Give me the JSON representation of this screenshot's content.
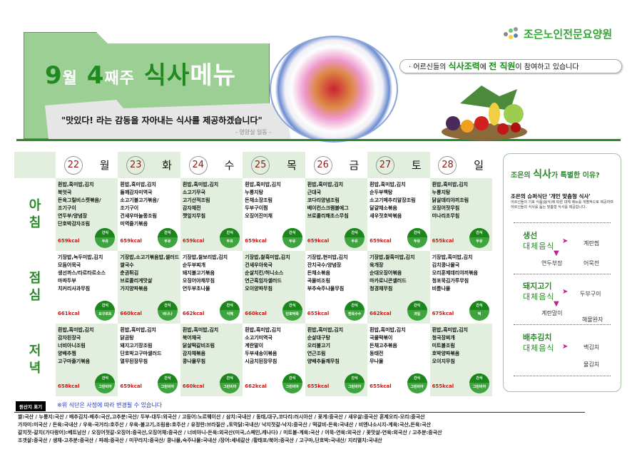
{
  "header": {
    "title_month": "9",
    "title_month_unit": "월",
    "title_week": "4",
    "title_week_unit": "째주",
    "title_meal": "식사",
    "title_menu": "메뉴",
    "quote": "\"맛있다! 라는 감동을 자아내는 식사를 제공하겠습니다\"",
    "quote_sign": "- 영양실 일동 -",
    "logo_text": "조은노인전문요양원",
    "slogan_pre": "· 어르신들의 ",
    "slogan_b1": "식사조력",
    "slogan_mid": "에 ",
    "slogan_b2": "전 직원",
    "slogan_post": "이 참여하고 있습니다"
  },
  "days": [
    {
      "num": "22",
      "name": "월"
    },
    {
      "num": "23",
      "name": "화"
    },
    {
      "num": "24",
      "name": "수"
    },
    {
      "num": "25",
      "name": "목"
    },
    {
      "num": "26",
      "name": "금"
    },
    {
      "num": "27",
      "name": "토"
    },
    {
      "num": "28",
      "name": "일"
    }
  ],
  "meals": [
    {
      "label": [
        "아",
        "침"
      ],
      "cells": [
        {
          "items": [
            "흰밥,흑미밥,김치",
            "북엇국",
            "돈육그릴비스켓볶음/",
            "조기구이",
            "연두부/양념장",
            "단호박감자조림"
          ],
          "kcal": "659kcal",
          "snack": [
            "간식",
            "두유"
          ]
        },
        {
          "items": [
            "흰밥,흑미밥,김치",
            "들깨감자미역국",
            "소고기불고기볶음/",
            "조기구이",
            "건새우마늘쫑조림",
            "미역줄기볶음"
          ],
          "kcal": "659kcal",
          "snack": [
            "간식",
            "두유"
          ]
        },
        {
          "items": [
            "흰밥,흑미밥,김치",
            "소고기무국",
            "고기산적조림",
            "감자채전",
            "깻잎지무침"
          ],
          "kcal": "659kcal",
          "snack": [
            "간식",
            "두유"
          ]
        },
        {
          "items": [
            "흰밥,흑미밥,김치",
            "누룽지탕",
            "돈채소장조림",
            "두부구이찜",
            "오징어진미채"
          ],
          "kcal": "659kcal",
          "snack": [
            "간식",
            "두유"
          ]
        },
        {
          "items": [
            "흰밥,흑미밥,김치",
            "근대국",
            "코다리양념조림",
            "베이컨스크램블에그",
            "브로콜리해초스무침"
          ],
          "kcal": "659kcal",
          "snack": [
            "간식",
            "두유"
          ]
        },
        {
          "items": [
            "흰밥,흑미밥,김치",
            "순두부백탕",
            "소고기메추리알장조림",
            "달걀채소볶음",
            "새우젓호박볶음"
          ],
          "kcal": "659kcal",
          "snack": [
            "간식",
            "두유"
          ]
        },
        {
          "items": [
            "흰밥,흑미밥,김치",
            "누룽지탕",
            "닭살데리야끼조림",
            "오징어젓무침",
            "미나리초무침"
          ],
          "kcal": "655kcal",
          "snack": [
            "간식",
            "두유"
          ]
        }
      ]
    },
    {
      "label": [
        "점",
        "심"
      ],
      "cells": [
        {
          "items": [
            "기장밥,녹두미밥,김치",
            "모둠어묵국",
            "생선까스/타르타르소스",
            "마파두부",
            "치커리사과무침"
          ],
          "kcal": "661kcal",
          "snack": [
            "간식",
            "요구르트"
          ]
        },
        {
          "items": [
            "기장밥,소고기볶음밥,샐러드",
            "쌀국수",
            "춘권튀김",
            "브로콜리게맛살",
            "가지양파볶음"
          ],
          "kcal": "660kcal",
          "snack": [
            "간식",
            "바나나"
          ]
        },
        {
          "items": [
            "기장밥,찰보리밥,김치",
            "순두부찌개",
            "돼지불고기볶음",
            "오징어야채무침",
            "연두부초나물"
          ],
          "kcal": "662kcal",
          "snack": [
            "간식",
            "식혜"
          ]
        },
        {
          "items": [
            "기장밥,찰흑미밥,김치",
            "건새우아욱국",
            "순살치킨/허니소스",
            "연근흑임자샐러드",
            "오이양파무침"
          ],
          "kcal": "660kcal",
          "snack": [
            "간식",
            "단호박죽"
          ]
        },
        {
          "items": [
            "기장밥,현미밥,김치",
            "잔치국수/양념장",
            "돈채소볶음",
            "곡물비조림",
            "부추숙주나물무침"
          ],
          "kcal": "655kcal",
          "snack": [
            "간식",
            "찐옥수수"
          ]
        },
        {
          "items": [
            "기장밥,찰흑미밥,김치",
            "육개장",
            "순대오징어볶음",
            "마카로니콘샐러드",
            "청경채무침"
          ],
          "kcal": "662kcal",
          "snack": [
            "간식",
            "과일"
          ]
        },
        {
          "items": [
            "기장밥,흑미밥,김치",
            "김치콩나물국",
            "오리훈제데리야끼볶음",
            "청포묵김가루무침",
            "비름나물"
          ],
          "kcal": "675kcal",
          "snack": [
            "간식",
            "떡"
          ]
        }
      ]
    },
    {
      "label": [
        "저",
        "녁"
      ],
      "cells": [
        {
          "items": [
            "흰밥,흑미밥,김치",
            "감자된장국",
            "너비아니조림",
            "양배추찜",
            "고구마줄기볶음"
          ],
          "kcal": "658kcal",
          "snack": [
            "간식",
            "그린비아"
          ]
        },
        {
          "items": [
            "흰밥,흑미밥,김치",
            "닭곰탕",
            "돼지고기장조림",
            "단호박고구마샐러드",
            "열무된장무침"
          ],
          "kcal": "659kcal",
          "snack": [
            "간식",
            "그린비아"
          ]
        },
        {
          "items": [
            "흰밥,흑미밥,김치",
            "북어채국",
            "닭살떡갈비조림",
            "감자채볶음",
            "콩나물무침"
          ],
          "kcal": "660kcal",
          "snack": [
            "간식",
            "그린비아"
          ]
        },
        {
          "items": [
            "흰밥,흑미밥,김치",
            "소고기미역국",
            "계란말이",
            "두부새송이볶음",
            "시금치된장무침"
          ],
          "kcal": "662kcal",
          "snack": [
            "간식",
            "그린비아"
          ]
        },
        {
          "items": [
            "흰밥,흑미밥,김치",
            "순살대구탕",
            "오리불고기",
            "연근조림",
            "양배추들깨무침"
          ],
          "kcal": "655kcal",
          "snack": [
            "간식",
            "그린비아"
          ]
        },
        {
          "items": [
            "흰밥,흑미밥,김치",
            "국물떡볶이",
            "돈채고추볶음",
            "동태전",
            "무나물"
          ],
          "kcal": "655kcal",
          "snack": [
            "간식",
            "그린비아"
          ]
        },
        {
          "items": [
            "흰밥,흑미밥,김치",
            "청국장찌개",
            "미트볼조림",
            "호박양파볶음",
            "오이지무침"
          ],
          "kcal": "655kcal",
          "snack": [
            "간식",
            "그린비아"
          ]
        }
      ]
    }
  ],
  "panel": {
    "title_pre": "조은의 ",
    "title_b": "식사",
    "title_post": "가 특별한 이유?",
    "sub": "조은의 슈퍼식단  '개인 맞춤형 식사'",
    "desc": "어르신들의 기호 식품(음식)에 따른 대체 메뉴를 개별적으로 제공하며 어르신들의 식사를 돕는 맞춤형 식사를 제공합니다.",
    "sections": [
      {
        "title": "생선",
        "sub": "대체음식",
        "alts": [
          "계란찜",
          "연두부장",
          "어묵전"
        ]
      },
      {
        "title": "돼지고기",
        "sub": "대체음식",
        "alts": [
          "두부구이",
          "계란말이",
          "해물완자"
        ]
      },
      {
        "title": "배추김치",
        "sub": "대체음식",
        "alts": [
          "백김치",
          "물김치"
        ]
      }
    ]
  },
  "footer": {
    "tag": "원산지 표기",
    "note": "※위 식단은 사정에 따라 변경될 수 있습니다",
    "lines": [
      "쌀:국산 / 누룽지:국산 / 배추김치-배추:국산,고추분:국산/ 두부-대두:외국산 / 고등어:노르웨이산 / 삼치:국내산 / 동태,대구,코다리:러시아산 / 꽃게:중국산 / 새우살:중국산 훈제오리-오리:중국산",
      "가자미:미국산 / 돈육:국내산 / 우육-국거리:호주산 / 우육-불고기,조림용:호주산 / 유정란:브라질산 ,토막닭:국내산/ 낙지젓갈-낙지:중국산 / 떡갈비-돈육:국내산 / 비엔나소시지-계육:국산,돈육:국산",
      "갈치젓-갈치(가다랑어):베트남산 / 오징어젓갈-오징어:중국산,오징어채:중국산 / 너비아니-돈육:외국산(미국,스페인,캐나다) / 미트볼-계육:국산 / 어묵-연육:외국산 / 꽃맛살-연육:외국산 / 고추분:중국산",
      "조갯살:중국산 / 생채-고추분:중국산 / 파래:중국산 / 미꾸라지:중국산/ 콩나물,숙주나물:국내산 /장어:세네갈산 /황태포/북어:중국산 / 고구마,단호박:국내산/ 지리멸치:국내산"
    ]
  },
  "colors": {
    "brand_green": "#2a8a2a",
    "banner_green": "#9ccf94",
    "kcal_red": "#e01010",
    "cell_green": "#e2efdf",
    "arrow_magenta": "#c0208a"
  }
}
